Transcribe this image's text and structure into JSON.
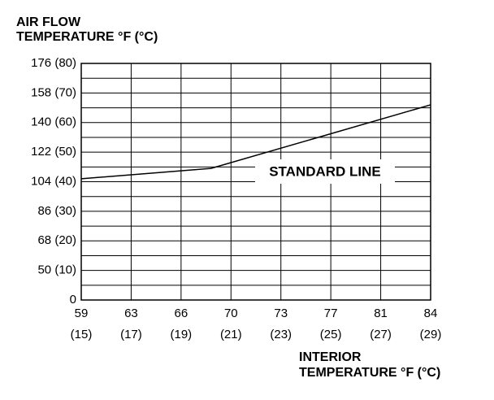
{
  "chart_data": {
    "type": "line",
    "y_label": [
      "AIR FLOW",
      "TEMPERATURE °F (°C)"
    ],
    "x_label": [
      "INTERIOR",
      "TEMPERATURE °F (°C)"
    ],
    "annotation": "STANDARD LINE",
    "x": [
      15,
      20.2,
      29
    ],
    "series": [
      {
        "color": "#000000",
        "values": [
          41,
          44.5,
          66
        ]
      }
    ],
    "xlim": [
      15,
      29
    ],
    "xticks": [
      {
        "value": 15,
        "label": "59\n(15)"
      },
      {
        "value": 17,
        "label": "63\n(17)"
      },
      {
        "value": 19,
        "label": "66\n(19)"
      },
      {
        "value": 21,
        "label": "70\n(21)"
      },
      {
        "value": 23,
        "label": "73\n(23)"
      },
      {
        "value": 25,
        "label": "77\n(25)"
      },
      {
        "value": 27,
        "label": "81\n(27)"
      },
      {
        "value": 29,
        "label": "84\n(29)"
      }
    ],
    "ylim": [
      0,
      80
    ],
    "yticks": [
      0,
      {
        "value": 10,
        "label": "50 (10)"
      },
      {
        "value": 20,
        "label": "68 (20)"
      },
      {
        "value": 30,
        "label": "86 (30)"
      },
      {
        "value": 40,
        "label": "104 (40)"
      },
      {
        "value": 50,
        "label": "122 (50)"
      },
      {
        "value": 60,
        "label": "140 (60)"
      },
      {
        "value": 70,
        "label": "158 (70)"
      },
      {
        "value": 80,
        "label": "176 (80)"
      }
    ],
    "yminorticks": [
      5,
      15,
      25,
      35,
      45,
      55,
      65,
      75
    ],
    "grid": true
  }
}
